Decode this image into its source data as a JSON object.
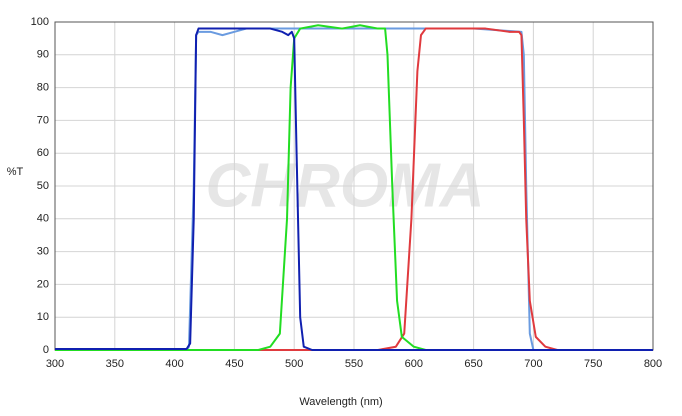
{
  "chart_data": {
    "type": "line",
    "x_label": "Wavelength (nm)",
    "y_label": "%T",
    "watermark": "CHROMA",
    "xlim": [
      300,
      800
    ],
    "ylim": [
      0,
      100
    ],
    "xticks": [
      300,
      350,
      400,
      450,
      500,
      550,
      600,
      650,
      700,
      750,
      800
    ],
    "yticks": [
      0,
      10,
      20,
      30,
      40,
      50,
      60,
      70,
      80,
      90,
      100
    ],
    "grid": true,
    "series": [
      {
        "color": "#6a9be0",
        "x": [
          300,
          410,
          412,
          416,
          418,
          420,
          430,
          440,
          450,
          460,
          500,
          550,
          600,
          650,
          690,
          692,
          694,
          697,
          700,
          800
        ],
        "values": [
          0,
          0,
          1,
          50,
          96,
          97,
          97,
          96,
          97,
          98,
          98,
          98,
          98,
          98,
          97,
          90,
          50,
          5,
          0,
          0
        ]
      },
      {
        "color": "#e03a3e",
        "x": [
          300,
          570,
          585,
          592,
          598,
          603,
          606,
          610,
          640,
          660,
          680,
          688,
          690,
          692,
          694,
          697,
          702,
          710,
          720,
          800
        ],
        "values": [
          0,
          0,
          1,
          5,
          40,
          85,
          96,
          98,
          98,
          98,
          97,
          97,
          96,
          70,
          40,
          15,
          4,
          1,
          0,
          0
        ]
      },
      {
        "color": "#22dd22",
        "x": [
          300,
          470,
          480,
          488,
          494,
          497,
          500,
          505,
          520,
          540,
          555,
          570,
          576,
          578,
          582,
          586,
          590,
          600,
          610,
          800
        ],
        "values": [
          0,
          0,
          1,
          5,
          40,
          80,
          95,
          98,
          99,
          98,
          99,
          98,
          98,
          90,
          50,
          15,
          4,
          1,
          0,
          0
        ]
      },
      {
        "color": "#1020b0",
        "x": [
          300,
          410,
          413,
          416,
          418,
          420,
          450,
          480,
          490,
          495,
          498,
          500,
          502,
          505,
          508,
          515,
          800
        ],
        "values": [
          0.3,
          0.3,
          2,
          40,
          96,
          98,
          98,
          98,
          97,
          96,
          97,
          95,
          60,
          10,
          1,
          0,
          0
        ]
      }
    ]
  }
}
